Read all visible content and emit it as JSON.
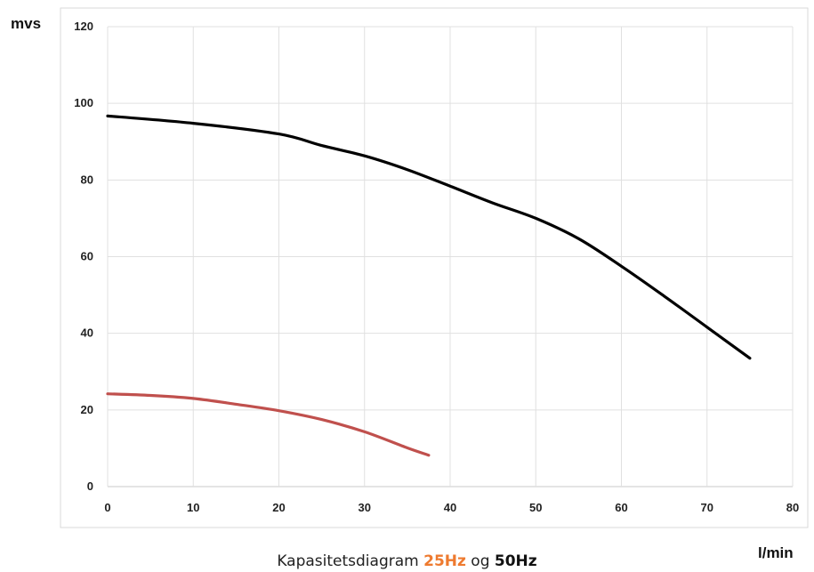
{
  "chart_data": {
    "type": "line",
    "xlabel": "l/min",
    "ylabel": "mvs",
    "xlim": [
      0,
      80
    ],
    "ylim": [
      0,
      120
    ],
    "x_ticks": [
      0,
      10,
      20,
      30,
      40,
      50,
      60,
      70,
      80
    ],
    "y_ticks": [
      0,
      20,
      40,
      60,
      80,
      100,
      120
    ],
    "grid": true,
    "series": [
      {
        "color": "#000000",
        "points": [
          [
            0,
            96.7
          ],
          [
            10,
            94.8
          ],
          [
            20,
            92
          ],
          [
            25,
            89
          ],
          [
            30,
            86.3
          ],
          [
            35,
            82.7
          ],
          [
            40,
            78.4
          ],
          [
            45,
            74
          ],
          [
            50,
            70
          ],
          [
            55,
            64.7
          ],
          [
            60,
            57.5
          ],
          [
            65,
            49.7
          ],
          [
            70,
            41.6
          ],
          [
            75,
            33.5
          ]
        ]
      },
      {
        "color": "#c0504d",
        "points": [
          [
            0,
            24.2
          ],
          [
            5,
            23.8
          ],
          [
            10,
            23
          ],
          [
            15,
            21.5
          ],
          [
            20,
            19.8
          ],
          [
            25,
            17.5
          ],
          [
            30,
            14.3
          ],
          [
            35,
            10.1
          ],
          [
            37.5,
            8.2
          ]
        ]
      }
    ]
  },
  "caption": {
    "prefix": "Kapasitetsdiagram ",
    "hz25": "25Hz",
    "middle": " og ",
    "hz50": "50Hz"
  }
}
